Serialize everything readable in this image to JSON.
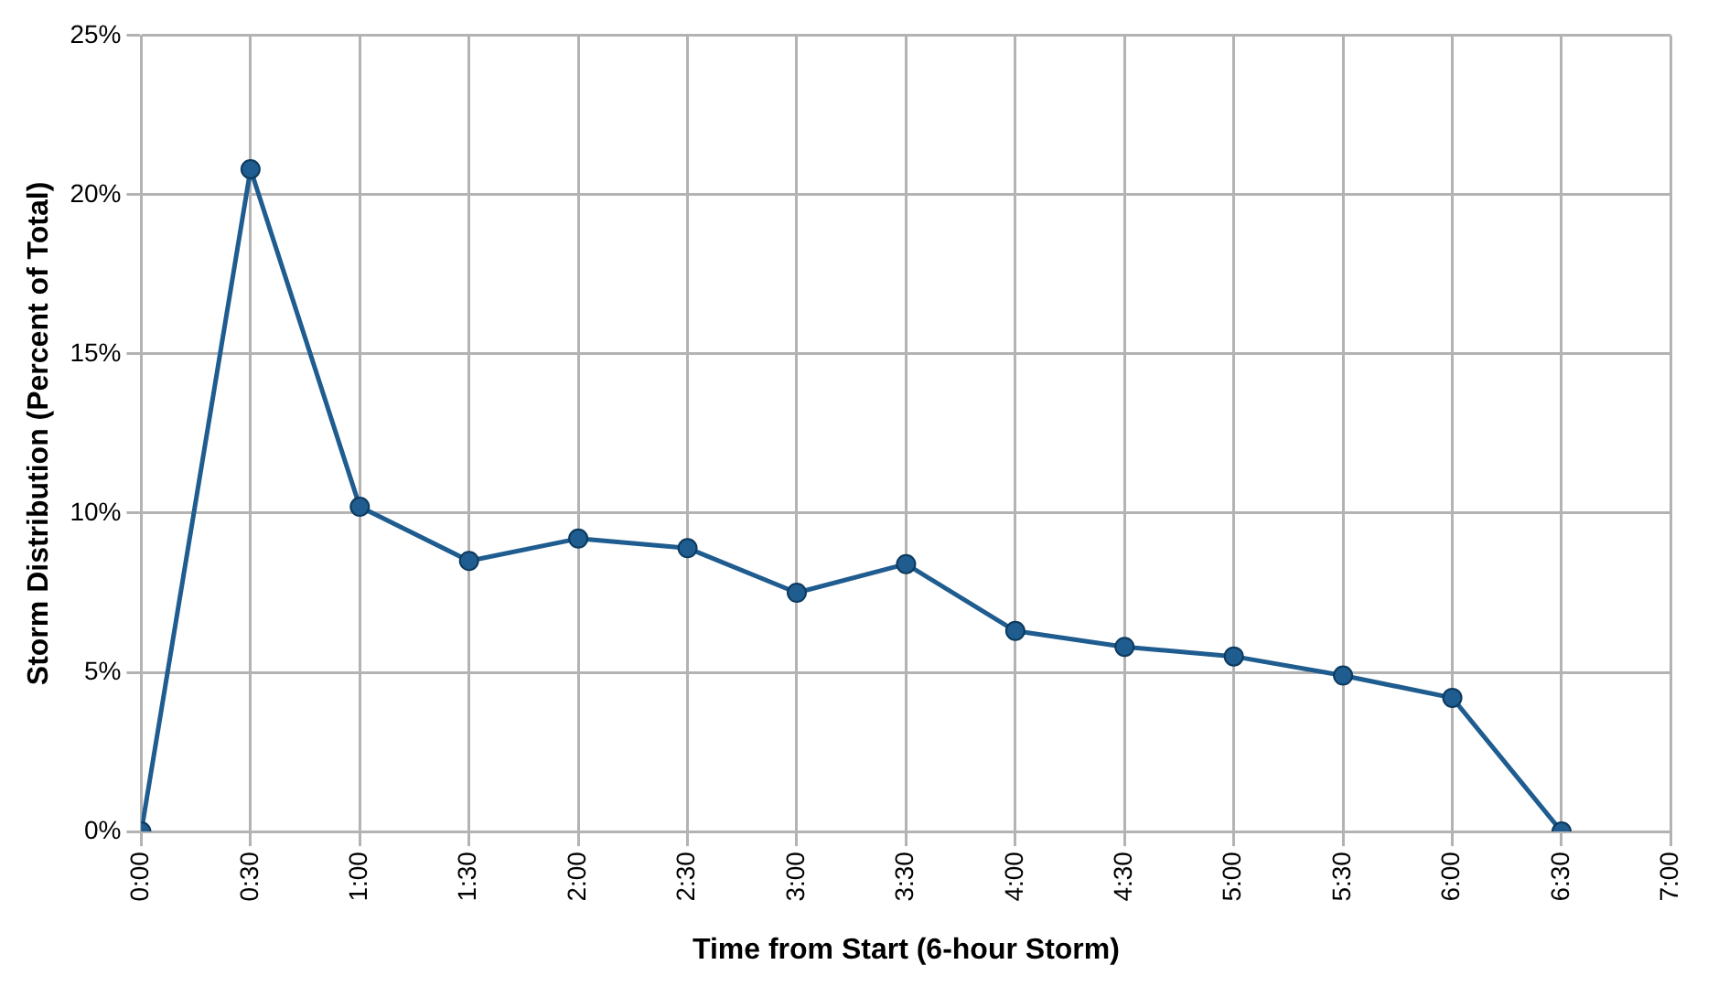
{
  "chart_data": {
    "type": "line",
    "xlabel": "Time from Start (6-hour Storm)",
    "ylabel": "Storm Distribution (Percent of Total)",
    "x": [
      0,
      0.5,
      1,
      1.5,
      2,
      2.5,
      3,
      3.5,
      4,
      4.5,
      5,
      5.5,
      6,
      6.5
    ],
    "series": [
      {
        "color": "#1f5c8f",
        "values": [
          0,
          20.8,
          10.2,
          8.5,
          9.2,
          8.9,
          7.5,
          8.4,
          6.3,
          5.8,
          5.5,
          4.9,
          4.2,
          0
        ]
      }
    ],
    "xlim": [
      0,
      7
    ],
    "xticks": [
      {
        "value": 0,
        "label": "0:00"
      },
      {
        "value": 0.5,
        "label": "0:30"
      },
      {
        "value": 1,
        "label": "1:00"
      },
      {
        "value": 1.5,
        "label": "1:30"
      },
      {
        "value": 2,
        "label": "2:00"
      },
      {
        "value": 2.5,
        "label": "2:30"
      },
      {
        "value": 3,
        "label": "3:00"
      },
      {
        "value": 3.5,
        "label": "3:30"
      },
      {
        "value": 4,
        "label": "4:00"
      },
      {
        "value": 4.5,
        "label": "4:30"
      },
      {
        "value": 5,
        "label": "5:00"
      },
      {
        "value": 5.5,
        "label": "5:30"
      },
      {
        "value": 6,
        "label": "6:00"
      },
      {
        "value": 6.5,
        "label": "6:30"
      },
      {
        "value": 7,
        "label": "7:00"
      }
    ],
    "ylim": [
      0,
      25
    ],
    "yticks": [
      {
        "value": 0,
        "label": "0%"
      },
      {
        "value": 5,
        "label": "5%"
      },
      {
        "value": 10,
        "label": "10%"
      },
      {
        "value": 15,
        "label": "15%"
      },
      {
        "value": 20,
        "label": "20%"
      },
      {
        "value": 25,
        "label": "25%"
      }
    ],
    "grid": true,
    "legend": false,
    "marker": "circle",
    "line_style": "solid"
  }
}
